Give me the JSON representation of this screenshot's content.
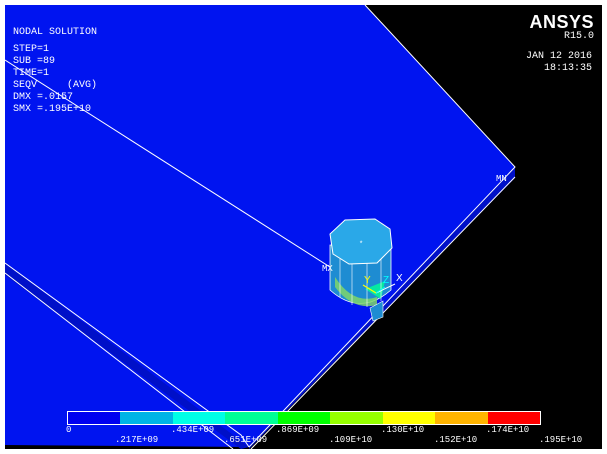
{
  "title": "NODAL SOLUTION",
  "info": {
    "step": "STEP=1",
    "sub": "SUB =89",
    "time": "TIME=1",
    "seqv": "SEQV     (AVG)",
    "dmx": "DMX =.0157",
    "smx": "SMX =.195E+10"
  },
  "logo": {
    "brand": "ANSYS",
    "release": "R15.0"
  },
  "datetime": {
    "date": "JAN 12 2016",
    "time": "18:13:35"
  },
  "markers": {
    "mn": "MN",
    "mx": "MX"
  },
  "axes": {
    "y": "Y",
    "z": "Z",
    "x": "X"
  },
  "legend": {
    "colors": [
      "#0000f0",
      "#00b4e6",
      "#00ffe6",
      "#00ff96",
      "#00ff00",
      "#96ff00",
      "#ffff00",
      "#ffb400",
      "#ff0000"
    ],
    "labels_top": [
      "0",
      ".434E+09",
      ".869E+09",
      ".130E+10",
      ".174E+10"
    ],
    "labels_bottom": [
      ".217E+09",
      ".651E+09",
      ".109E+10",
      ".152E+10",
      ".195E+10"
    ]
  },
  "colors": {
    "plate": "#0014f0",
    "plate_edge": "#ffffff",
    "cylinder_side": "#1e8cd2",
    "cylinder_top": "#2aa8e8",
    "hot_spot": "#7fd66a"
  }
}
